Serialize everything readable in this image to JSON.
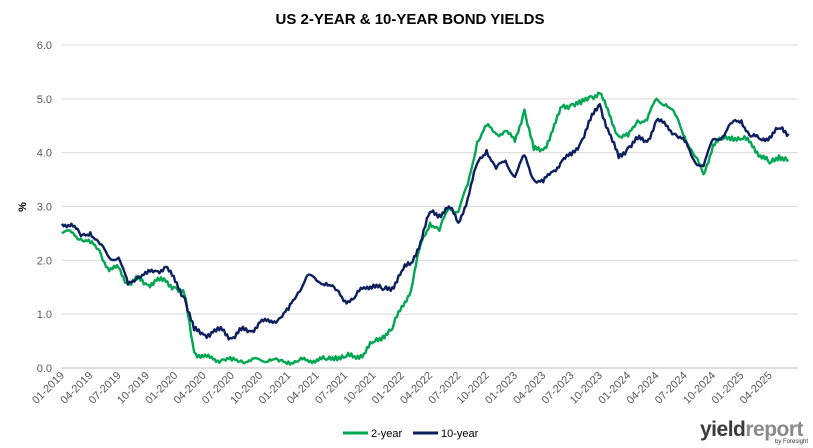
{
  "chart_data": {
    "type": "line",
    "title": "US 2-YEAR & 10-YEAR BOND YIELDS",
    "ylabel": "%",
    "xlabel": "",
    "ylim": [
      0,
      6
    ],
    "yticks": [
      "0.0",
      "1.0",
      "2.0",
      "3.0",
      "4.0",
      "5.0",
      "6.0"
    ],
    "xticks": [
      "01-2019",
      "04-2019",
      "07-2019",
      "10-2019",
      "01-2020",
      "04-2020",
      "07-2020",
      "10-2020",
      "01-2021",
      "04-2021",
      "07-2021",
      "10-2021",
      "01-2022",
      "04-2022",
      "07-2022",
      "10-2022",
      "01-2023",
      "04-2023",
      "07-2023",
      "10-2023",
      "01-2024",
      "04-2024",
      "07-2024",
      "10-2024",
      "01-2025",
      "04-2025"
    ],
    "grid": "horizontal",
    "legend_position": "bottom",
    "series": [
      {
        "name": "2-year",
        "color": "#00a651",
        "points": [
          [
            "2019-01",
            2.5
          ],
          [
            "2019-02",
            2.52
          ],
          [
            "2019-03",
            2.4
          ],
          [
            "2019-04",
            2.32
          ],
          [
            "2019-05",
            2.18
          ],
          [
            "2019-06",
            1.8
          ],
          [
            "2019-07",
            1.86
          ],
          [
            "2019-08",
            1.55
          ],
          [
            "2019-09",
            1.65
          ],
          [
            "2019-10",
            1.55
          ],
          [
            "2019-11",
            1.62
          ],
          [
            "2019-12",
            1.6
          ],
          [
            "2020-01",
            1.5
          ],
          [
            "2020-02",
            1.35
          ],
          [
            "2020-03",
            0.3
          ],
          [
            "2020-04",
            0.2
          ],
          [
            "2020-05",
            0.16
          ],
          [
            "2020-06",
            0.16
          ],
          [
            "2020-07",
            0.14
          ],
          [
            "2020-08",
            0.14
          ],
          [
            "2020-09",
            0.13
          ],
          [
            "2020-10",
            0.15
          ],
          [
            "2020-11",
            0.16
          ],
          [
            "2020-12",
            0.12
          ],
          [
            "2021-01",
            0.12
          ],
          [
            "2021-02",
            0.12
          ],
          [
            "2021-03",
            0.15
          ],
          [
            "2021-04",
            0.16
          ],
          [
            "2021-05",
            0.15
          ],
          [
            "2021-06",
            0.22
          ],
          [
            "2021-07",
            0.2
          ],
          [
            "2021-08",
            0.22
          ],
          [
            "2021-09",
            0.27
          ],
          [
            "2021-10",
            0.48
          ],
          [
            "2021-11",
            0.6
          ],
          [
            "2021-12",
            0.72
          ],
          [
            "2022-01",
            1.15
          ],
          [
            "2022-02",
            1.45
          ],
          [
            "2022-03",
            2.3
          ],
          [
            "2022-04",
            2.7
          ],
          [
            "2022-05",
            2.55
          ],
          [
            "2022-06",
            3.0
          ],
          [
            "2022-07",
            2.9
          ],
          [
            "2022-08",
            3.4
          ],
          [
            "2022-09",
            4.2
          ],
          [
            "2022-10",
            4.5
          ],
          [
            "2022-11",
            4.35
          ],
          [
            "2022-12",
            4.4
          ],
          [
            "2023-01",
            4.2
          ],
          [
            "2023-02",
            4.8
          ],
          [
            "2023-03",
            4.05
          ],
          [
            "2023-04",
            4.05
          ],
          [
            "2023-05",
            4.4
          ],
          [
            "2023-06",
            4.85
          ],
          [
            "2023-07",
            4.9
          ],
          [
            "2023-08",
            4.9
          ],
          [
            "2023-09",
            5.05
          ],
          [
            "2023-10",
            5.1
          ],
          [
            "2023-11",
            4.7
          ],
          [
            "2023-12",
            4.3
          ],
          [
            "2024-01",
            4.3
          ],
          [
            "2024-02",
            4.6
          ],
          [
            "2024-03",
            4.6
          ],
          [
            "2024-04",
            5.0
          ],
          [
            "2024-05",
            4.9
          ],
          [
            "2024-06",
            4.7
          ],
          [
            "2024-07",
            4.3
          ],
          [
            "2024-08",
            3.95
          ],
          [
            "2024-09",
            3.6
          ],
          [
            "2024-10",
            4.15
          ],
          [
            "2024-11",
            4.25
          ],
          [
            "2024-12",
            4.3
          ],
          [
            "2025-01",
            4.25
          ],
          [
            "2025-02",
            4.2
          ],
          [
            "2025-03",
            3.95
          ],
          [
            "2025-04",
            3.8
          ],
          [
            "2025-05",
            3.95
          ],
          [
            "2025-06",
            3.85
          ]
        ]
      },
      {
        "name": "10-year",
        "color": "#0d1f5c",
        "points": [
          [
            "2019-01",
            2.68
          ],
          [
            "2019-02",
            2.68
          ],
          [
            "2019-03",
            2.45
          ],
          [
            "2019-04",
            2.52
          ],
          [
            "2019-05",
            2.3
          ],
          [
            "2019-06",
            2.05
          ],
          [
            "2019-07",
            2.05
          ],
          [
            "2019-08",
            1.55
          ],
          [
            "2019-09",
            1.7
          ],
          [
            "2019-10",
            1.75
          ],
          [
            "2019-11",
            1.8
          ],
          [
            "2019-12",
            1.88
          ],
          [
            "2020-01",
            1.6
          ],
          [
            "2020-02",
            1.3
          ],
          [
            "2020-03",
            0.7
          ],
          [
            "2020-04",
            0.62
          ],
          [
            "2020-05",
            0.66
          ],
          [
            "2020-06",
            0.7
          ],
          [
            "2020-07",
            0.55
          ],
          [
            "2020-08",
            0.7
          ],
          [
            "2020-09",
            0.68
          ],
          [
            "2020-10",
            0.85
          ],
          [
            "2020-11",
            0.85
          ],
          [
            "2020-12",
            0.92
          ],
          [
            "2021-01",
            1.08
          ],
          [
            "2021-02",
            1.4
          ],
          [
            "2021-03",
            1.72
          ],
          [
            "2021-04",
            1.62
          ],
          [
            "2021-05",
            1.58
          ],
          [
            "2021-06",
            1.45
          ],
          [
            "2021-07",
            1.25
          ],
          [
            "2021-08",
            1.3
          ],
          [
            "2021-09",
            1.5
          ],
          [
            "2021-10",
            1.55
          ],
          [
            "2021-11",
            1.45
          ],
          [
            "2021-12",
            1.5
          ],
          [
            "2022-01",
            1.8
          ],
          [
            "2022-02",
            1.95
          ],
          [
            "2022-03",
            2.35
          ],
          [
            "2022-04",
            2.9
          ],
          [
            "2022-05",
            2.85
          ],
          [
            "2022-06",
            3.0
          ],
          [
            "2022-07",
            2.7
          ],
          [
            "2022-08",
            3.15
          ],
          [
            "2022-09",
            3.8
          ],
          [
            "2022-10",
            4.05
          ],
          [
            "2022-11",
            3.7
          ],
          [
            "2022-12",
            3.85
          ],
          [
            "2023-01",
            3.55
          ],
          [
            "2023-02",
            3.95
          ],
          [
            "2023-03",
            3.5
          ],
          [
            "2023-04",
            3.45
          ],
          [
            "2023-05",
            3.65
          ],
          [
            "2023-06",
            3.85
          ],
          [
            "2023-07",
            3.95
          ],
          [
            "2023-08",
            4.2
          ],
          [
            "2023-09",
            4.6
          ],
          [
            "2023-10",
            4.9
          ],
          [
            "2023-11",
            4.35
          ],
          [
            "2023-12",
            3.9
          ],
          [
            "2024-01",
            4.1
          ],
          [
            "2024-02",
            4.25
          ],
          [
            "2024-03",
            4.2
          ],
          [
            "2024-04",
            4.6
          ],
          [
            "2024-05",
            4.5
          ],
          [
            "2024-06",
            4.35
          ],
          [
            "2024-07",
            4.2
          ],
          [
            "2024-08",
            3.85
          ],
          [
            "2024-09",
            3.75
          ],
          [
            "2024-10",
            4.25
          ],
          [
            "2024-11",
            4.3
          ],
          [
            "2024-12",
            4.55
          ],
          [
            "2025-01",
            4.6
          ],
          [
            "2025-02",
            4.3
          ],
          [
            "2025-03",
            4.25
          ],
          [
            "2025-04",
            4.3
          ],
          [
            "2025-05",
            4.45
          ],
          [
            "2025-06",
            4.35
          ]
        ]
      }
    ]
  },
  "brand": {
    "name_part1": "yield",
    "name_part2": "report",
    "byline": "by Foresight"
  }
}
